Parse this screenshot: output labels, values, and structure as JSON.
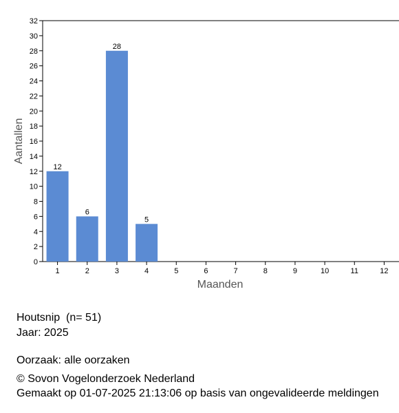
{
  "chart_data": {
    "type": "bar",
    "y_label": "Aantallen",
    "x_label": "Maanden",
    "categories": [
      "1",
      "2",
      "3",
      "4",
      "5",
      "6",
      "7",
      "8",
      "9",
      "10",
      "11",
      "12"
    ],
    "values": [
      12,
      6,
      28,
      5,
      null,
      null,
      null,
      null,
      null,
      null,
      null,
      null
    ],
    "color": "#5b8bd3",
    "ylim": [
      0,
      32
    ],
    "yticks": [
      0,
      2,
      4,
      6,
      8,
      10,
      12,
      14,
      16,
      18,
      20,
      22,
      24,
      26,
      28,
      30,
      32
    ]
  },
  "caption": {
    "species": "Houtsnip  (n= 51)",
    "year": "Jaar: 2025",
    "cause": "Oorzaak: alle oorzaken",
    "copyright": "© Sovon Vogelonderzoek Nederland",
    "made": "Gemaakt op 01-07-2025 21:13:06 op basis van ongevalideerde meldingen"
  }
}
